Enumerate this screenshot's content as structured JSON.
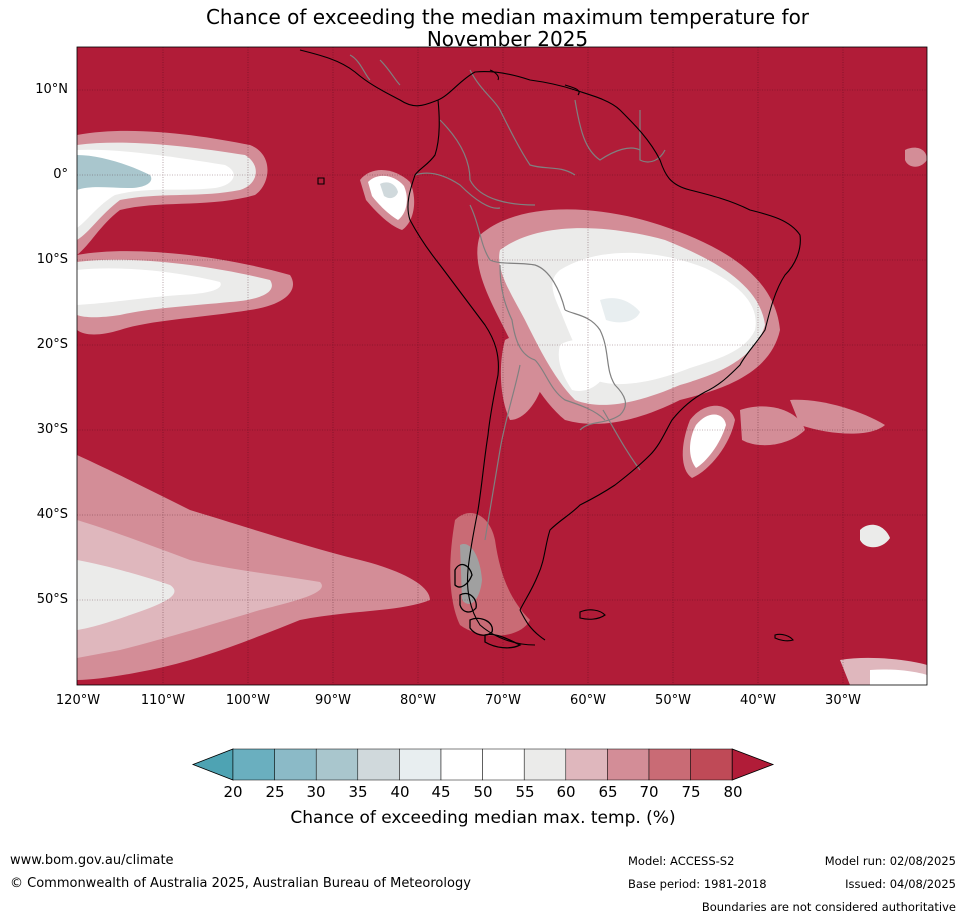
{
  "title_line1": "Chance of exceeding the median maximum temperature for",
  "title_line2": "November 2025",
  "lat_labels": [
    "10°N",
    "0°",
    "10°S",
    "20°S",
    "30°S",
    "40°S",
    "50°S"
  ],
  "lon_labels": [
    "120°W",
    "110°W",
    "100°W",
    "90°W",
    "80°W",
    "70°W",
    "60°W",
    "50°W",
    "40°W",
    "30°W"
  ],
  "colorbar": {
    "ticks": [
      "20",
      "25",
      "30",
      "35",
      "40",
      "45",
      "50",
      "55",
      "60",
      "65",
      "70",
      "75",
      "80"
    ],
    "colors": [
      "#4ea3b3",
      "#6aafbf",
      "#8bbac7",
      "#a9c6cd",
      "#d0d9dc",
      "#e8eef0",
      "#ffffff",
      "#ffffff",
      "#ebebea",
      "#dfb7bd",
      "#d38d97",
      "#c96b75",
      "#bf4a57",
      "#b11c38"
    ],
    "label": "Chance of exceeding median max. temp. (%)"
  },
  "colors": {
    "dominant": "#b11c38",
    "land_border": "#000000",
    "province_border": "#808080"
  },
  "footer": {
    "url": "www.bom.gov.au/climate",
    "copyright": "© Commonwealth of Australia 2025, Australian Bureau of Meteorology",
    "model": "Model: ACCESS-S2",
    "model_run": "Model run: 02/08/2025",
    "base_period": "Base period: 1981-2018",
    "issued": "Issued: 04/08/2025",
    "disclaimer": "Boundaries are not considered authoritative"
  }
}
